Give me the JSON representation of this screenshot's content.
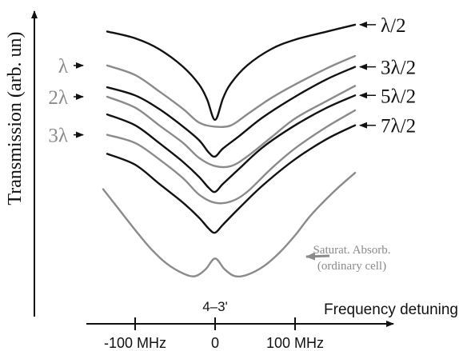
{
  "chart_data": {
    "type": "line",
    "ylabel": "Transmission (arb. un)",
    "xlabel": "Frequency detuning",
    "x_units": "MHz",
    "xlim": [
      -190,
      190
    ],
    "x_ticks": [
      {
        "value": -100,
        "label": "-100 MHz"
      },
      {
        "value": 0,
        "label": "0"
      },
      {
        "value": 100,
        "label": "100 MHz"
      }
    ],
    "annotations": {
      "transition": "4–3'",
      "saturated_absorption": [
        "Saturat. Absorb.",
        "(ordinary cell)"
      ]
    },
    "colors": {
      "black": "#111111",
      "gray": "#8a8a8a"
    },
    "series": [
      {
        "name": "λ/2",
        "side": "right",
        "color": "black",
        "x": [
          -135,
          -100,
          -70,
          -40,
          -20,
          -10,
          0,
          10,
          20,
          40,
          70,
          100,
          140,
          175
        ],
        "y": [
          12.8,
          12.3,
          11.5,
          10.2,
          8.9,
          7.8,
          6.3,
          7.9,
          9.0,
          10.3,
          11.5,
          12.2,
          12.8,
          13.3
        ]
      },
      {
        "name": "λ",
        "side": "left",
        "color": "gray",
        "x": [
          -135,
          -100,
          -70,
          -40,
          -20,
          0,
          20,
          40,
          70,
          100,
          140,
          175
        ],
        "y": [
          10.3,
          9.6,
          8.4,
          7.1,
          6.1,
          5.8,
          5.9,
          6.7,
          7.9,
          8.9,
          10.1,
          11.0
        ]
      },
      {
        "name": "3λ/2",
        "side": "right",
        "color": "black",
        "x": [
          -135,
          -100,
          -70,
          -40,
          -20,
          -8,
          0,
          10,
          30,
          60,
          100,
          140,
          175
        ],
        "y": [
          8.7,
          8.1,
          7.1,
          5.8,
          4.8,
          3.9,
          3.6,
          4.2,
          5.1,
          6.5,
          8.0,
          9.3,
          10.2
        ]
      },
      {
        "name": "2λ",
        "side": "left",
        "color": "gray",
        "x": [
          -135,
          -100,
          -70,
          -40,
          -20,
          0,
          20,
          40,
          70,
          100,
          140,
          175
        ],
        "y": [
          8.0,
          7.2,
          5.9,
          4.6,
          3.5,
          2.9,
          2.9,
          3.6,
          5.0,
          6.4,
          7.7,
          8.8
        ]
      },
      {
        "name": "5λ/2",
        "side": "right",
        "color": "black",
        "x": [
          -135,
          -100,
          -70,
          -40,
          -20,
          -8,
          0,
          10,
          30,
          60,
          100,
          140,
          175
        ],
        "y": [
          6.7,
          5.9,
          4.6,
          3.2,
          2.1,
          1.3,
          1.0,
          1.6,
          2.7,
          4.3,
          5.9,
          7.2,
          8.1
        ]
      },
      {
        "name": "3λ",
        "side": "left",
        "color": "gray",
        "x": [
          -135,
          -100,
          -70,
          -40,
          -20,
          0,
          20,
          40,
          70,
          100,
          140,
          175
        ],
        "y": [
          5.2,
          4.6,
          3.4,
          2.0,
          0.8,
          0.2,
          0.3,
          1.0,
          2.7,
          4.2,
          5.8,
          7.0
        ]
      },
      {
        "name": "7λ/2",
        "side": "right",
        "color": "black",
        "x": [
          -135,
          -100,
          -70,
          -40,
          -20,
          -8,
          0,
          10,
          30,
          60,
          100,
          140,
          175
        ],
        "y": [
          3.8,
          3.0,
          1.6,
          0.2,
          -0.9,
          -1.7,
          -2.0,
          -1.4,
          -0.2,
          1.5,
          3.4,
          4.9,
          5.9
        ]
      },
      {
        "name": "Saturat. Absorb. (ordinary cell)",
        "side": "right",
        "color": "gray",
        "x": [
          -140,
          -120,
          -100,
          -80,
          -60,
          -40,
          -25,
          -12,
          0,
          12,
          25,
          40,
          60,
          80,
          100,
          120,
          150,
          175
        ],
        "y": [
          1.2,
          -0.3,
          -1.8,
          -3.2,
          -4.3,
          -5.0,
          -5.2,
          -4.7,
          -3.9,
          -4.7,
          -5.2,
          -5.1,
          -4.5,
          -3.5,
          -2.2,
          -0.7,
          1.1,
          2.4
        ]
      }
    ]
  }
}
